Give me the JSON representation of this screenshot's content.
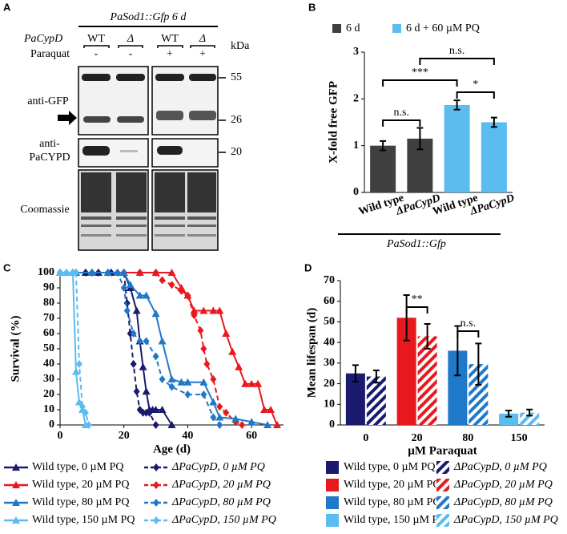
{
  "blot": {
    "panel_label": "A",
    "title": "PaSod1::Gfp 6 d",
    "genotype_label": "PaCypD",
    "lanes": [
      "WT",
      "Δ",
      "WT",
      "Δ"
    ],
    "treatment_label": "Paraquat",
    "treatments": [
      "-",
      "-",
      "+",
      "+"
    ],
    "marker_unit": "kDa",
    "markers": [
      "55",
      "26",
      "20"
    ],
    "antibodies": [
      "anti-GFP",
      "anti-",
      "PaCYPD",
      "Coomassie"
    ]
  },
  "chart_data": [
    {
      "type": "bar",
      "panel_label": "B",
      "ylabel": "X-fold free GFP",
      "categories": [
        "Wild type",
        "ΔPaCypD",
        "Wild type",
        "ΔPaCypD"
      ],
      "series": [
        {
          "name": "6 d",
          "color": "#404040",
          "values": [
            1.0,
            1.15,
            null,
            null
          ],
          "errors": [
            0.1,
            0.23,
            null,
            null
          ]
        },
        {
          "name": "6 d + 60 µM PQ",
          "color": "#5bbcf0",
          "values": [
            null,
            null,
            1.87,
            1.5
          ],
          "errors": [
            null,
            null,
            0.1,
            0.1
          ]
        }
      ],
      "ylim": [
        0,
        3
      ],
      "yticks": [
        0,
        1,
        2,
        3
      ],
      "annotations": [
        "n.s.",
        "***",
        "n.s.",
        "*"
      ],
      "footer": "PaSod1::Gfp"
    },
    {
      "type": "line",
      "panel_label": "C",
      "xlabel": "Age (d)",
      "ylabel": "Survival (%)",
      "xlim": [
        0,
        70
      ],
      "xticks": [
        0,
        20,
        40,
        60
      ],
      "ylim": [
        0,
        100
      ],
      "yticks": [
        0,
        10,
        20,
        30,
        40,
        50,
        60,
        70,
        80,
        90,
        100
      ],
      "series": [
        {
          "name": "Wild type, 0 µM PQ",
          "color": "#1a1a6e",
          "marker": "triangle",
          "dashed": false,
          "x": [
            0,
            4,
            8,
            12,
            16,
            20,
            22,
            24,
            25,
            26,
            27,
            28,
            29,
            30,
            32,
            35
          ],
          "values": [
            100,
            100,
            100,
            100,
            100,
            100,
            90,
            75,
            55,
            38,
            22,
            10,
            10,
            10,
            10,
            0
          ]
        },
        {
          "name": "ΔPaCypD, 0 µM PQ",
          "color": "#1a1a6e",
          "marker": "diamond",
          "dashed": true,
          "x": [
            0,
            4,
            8,
            12,
            16,
            20,
            21,
            22,
            23,
            24,
            25,
            26,
            27,
            28,
            30
          ],
          "values": [
            100,
            100,
            100,
            100,
            100,
            100,
            80,
            60,
            40,
            22,
            10,
            8,
            8,
            8,
            0
          ]
        },
        {
          "name": "Wild type, 20 µM PQ",
          "color": "#e8191e",
          "marker": "triangle",
          "dashed": false,
          "x": [
            0,
            5,
            10,
            15,
            18,
            20,
            25,
            30,
            35,
            38,
            40,
            42,
            45,
            48,
            50,
            52,
            54,
            56,
            58,
            60,
            62,
            64,
            66,
            68
          ],
          "values": [
            100,
            100,
            100,
            100,
            100,
            100,
            100,
            100,
            100,
            90,
            85,
            75,
            75,
            75,
            75,
            60,
            48,
            38,
            27,
            27,
            27,
            10,
            10,
            0
          ]
        },
        {
          "name": "ΔPaCypD, 20 µM PQ",
          "color": "#e8191e",
          "marker": "diamond",
          "dashed": true,
          "x": [
            0,
            5,
            10,
            15,
            20,
            25,
            30,
            32,
            35,
            38,
            40,
            42,
            44,
            45,
            46,
            48,
            50,
            52,
            55,
            57
          ],
          "values": [
            100,
            100,
            100,
            100,
            100,
            100,
            100,
            95,
            92,
            88,
            85,
            72,
            62,
            50,
            40,
            30,
            12,
            8,
            2,
            0
          ]
        },
        {
          "name": "Wild type, 80 µM PQ",
          "color": "#1f78c8",
          "marker": "triangle",
          "dashed": false,
          "x": [
            0,
            5,
            10,
            15,
            18,
            20,
            22,
            25,
            27,
            30,
            32,
            35,
            38,
            40,
            45,
            48,
            50,
            55,
            60,
            65
          ],
          "values": [
            100,
            100,
            100,
            100,
            100,
            100,
            92,
            85,
            85,
            73,
            55,
            30,
            28,
            28,
            28,
            15,
            5,
            4,
            2,
            0
          ]
        },
        {
          "name": "ΔPaCypD, 80 µM PQ",
          "color": "#1f78c8",
          "marker": "diamond",
          "dashed": true,
          "x": [
            0,
            5,
            10,
            15,
            18,
            20,
            21,
            23,
            25,
            27,
            30,
            32,
            35,
            40,
            45,
            48,
            50
          ],
          "values": [
            100,
            100,
            100,
            100,
            100,
            90,
            75,
            60,
            55,
            55,
            45,
            30,
            25,
            20,
            20,
            5,
            0
          ]
        },
        {
          "name": "Wild type, 150 µM PQ",
          "color": "#5bbcf0",
          "marker": "triangle",
          "dashed": false,
          "x": [
            0,
            2,
            4,
            5,
            6,
            7,
            8
          ],
          "values": [
            100,
            100,
            100,
            35,
            15,
            10,
            0
          ]
        },
        {
          "name": "ΔPaCypD, 150 µM PQ",
          "color": "#5bbcf0",
          "marker": "diamond",
          "dashed": true,
          "x": [
            0,
            2,
            4,
            5,
            6,
            7,
            8,
            9
          ],
          "values": [
            100,
            100,
            100,
            100,
            40,
            12,
            8,
            0
          ]
        }
      ]
    },
    {
      "type": "bar",
      "panel_label": "D",
      "xlabel": "µM Paraquat",
      "ylabel": "Mean lifespan (d)",
      "categories": [
        "0",
        "20",
        "80",
        "150"
      ],
      "ylim": [
        0,
        70
      ],
      "yticks": [
        0,
        10,
        20,
        30,
        40,
        50,
        60,
        70
      ],
      "series": [
        {
          "name": "Wild type, 0 µM PQ",
          "color": "#1a1a6e",
          "hatch": false,
          "values": [
            25,
            null,
            null,
            null
          ],
          "errors": [
            4,
            null,
            null,
            null
          ]
        },
        {
          "name": "ΔPaCypD, 0 µM PQ",
          "color": "#1a1a6e",
          "hatch": true,
          "values": [
            23.5,
            null,
            null,
            null
          ],
          "errors": [
            3,
            null,
            null,
            null
          ]
        },
        {
          "name": "Wild type, 20 µM PQ",
          "color": "#e8191e",
          "hatch": false,
          "values": [
            null,
            52,
            null,
            null
          ],
          "errors": [
            null,
            11,
            null,
            null
          ]
        },
        {
          "name": "ΔPaCypD, 20 µM PQ",
          "color": "#e8191e",
          "hatch": true,
          "values": [
            null,
            43,
            null,
            null
          ],
          "errors": [
            null,
            6,
            null,
            null
          ]
        },
        {
          "name": "Wild type, 80 µM PQ",
          "color": "#1f78c8",
          "hatch": false,
          "values": [
            null,
            null,
            36,
            null
          ],
          "errors": [
            null,
            null,
            12,
            null
          ]
        },
        {
          "name": "ΔPaCypD, 80 µM PQ",
          "color": "#1f78c8",
          "hatch": true,
          "values": [
            null,
            null,
            29.5,
            null
          ],
          "errors": [
            null,
            null,
            10,
            null
          ]
        },
        {
          "name": "Wild type, 150 µM PQ",
          "color": "#5bbcf0",
          "hatch": false,
          "values": [
            null,
            null,
            null,
            5.5
          ],
          "errors": [
            null,
            null,
            null,
            1.5
          ]
        },
        {
          "name": "ΔPaCypD, 150 µM PQ",
          "color": "#5bbcf0",
          "hatch": true,
          "values": [
            null,
            null,
            null,
            6
          ],
          "errors": [
            null,
            null,
            null,
            1.5
          ]
        }
      ],
      "annotations": [
        "**",
        "n.s."
      ]
    }
  ]
}
